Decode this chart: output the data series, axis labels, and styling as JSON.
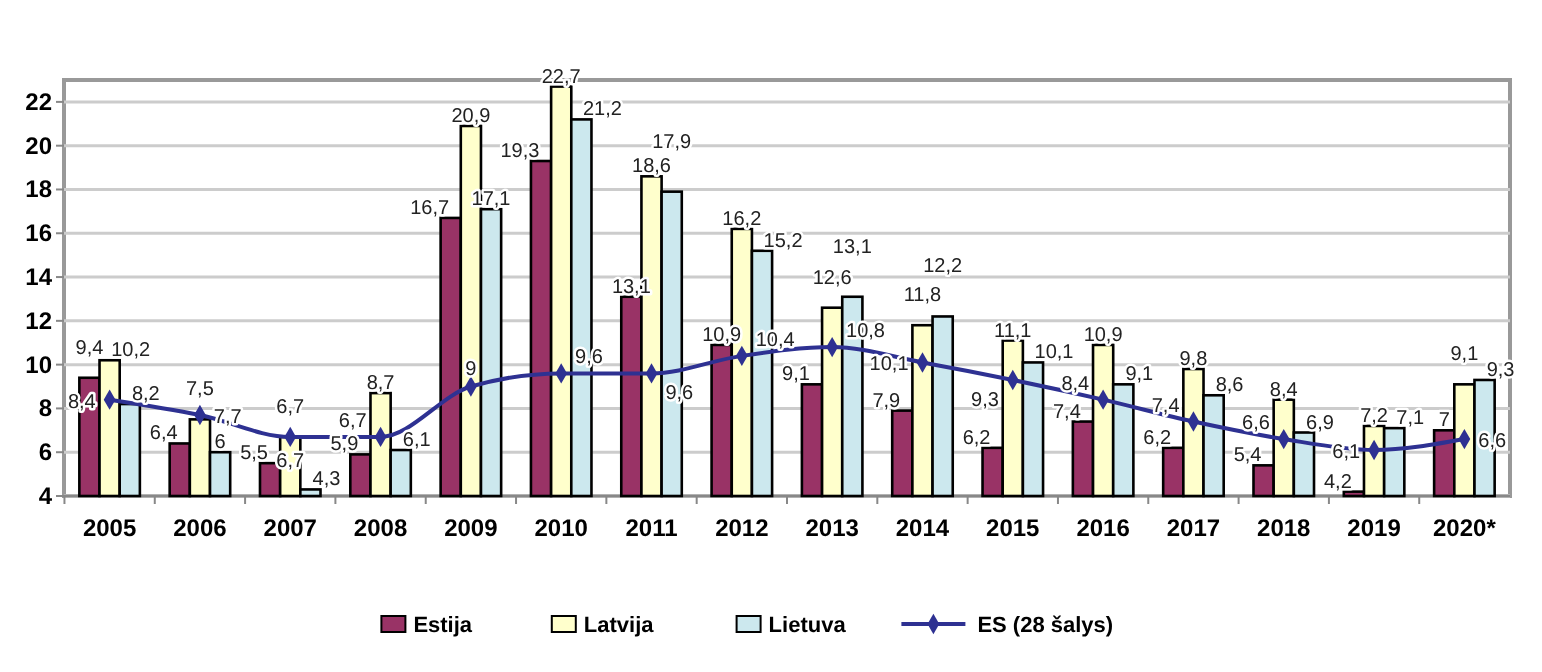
{
  "chart_data": {
    "type": "bar",
    "categories": [
      "2005",
      "2006",
      "2007",
      "2008",
      "2009",
      "2010",
      "2011",
      "2012",
      "2013",
      "2014",
      "2015",
      "2016",
      "2017",
      "2018",
      "2019",
      "2020*"
    ],
    "series": [
      {
        "name": "Estija",
        "color": "#993366",
        "values": [
          9.4,
          6.4,
          5.5,
          5.9,
          16.7,
          19.3,
          13.1,
          10.9,
          9.1,
          7.9,
          6.2,
          7.4,
          6.2,
          5.4,
          4.2,
          7
        ],
        "value_labels": [
          "9,4",
          "6,4",
          "5,5",
          "5,9",
          "16,7",
          "19,3",
          "13,1",
          "10,9",
          "9,1",
          "7,9",
          "6,2",
          "7,4",
          "6,2",
          "5,4",
          "4,2",
          "7"
        ]
      },
      {
        "name": "Latvija",
        "color": "#ffffcc",
        "values": [
          10.2,
          7.5,
          6.7,
          8.7,
          20.9,
          22.7,
          18.6,
          16.2,
          12.6,
          11.8,
          11.1,
          10.9,
          9.8,
          8.4,
          7.2,
          9.1
        ],
        "value_labels": [
          "10,2",
          "7,5",
          "6,7",
          "8,7",
          "20,9",
          "22,7",
          "18,6",
          "16,2",
          "12,6",
          "11,8",
          "11,1",
          "10,9",
          "9,8",
          "8,4",
          "7,2",
          "9,1"
        ]
      },
      {
        "name": "Lietuva",
        "color": "#cce8ee",
        "values": [
          8.2,
          6,
          4.3,
          6.1,
          17.1,
          21.2,
          17.9,
          15.2,
          13.1,
          12.2,
          10.1,
          9.1,
          8.6,
          6.9,
          7.1,
          9.3
        ],
        "value_labels": [
          "8,2",
          "6",
          "4,3",
          "6,1",
          "17,1",
          "21,2",
          "17,9",
          "15,2",
          "13,1",
          "12,2",
          "10,1",
          "9,1",
          "8,6",
          "6,9",
          "7,1",
          "9,3"
        ]
      },
      {
        "name": "ES (28 šalys)",
        "type": "line",
        "color": "#2e3192",
        "marker": "diamond",
        "values": [
          8.4,
          7.7,
          6.7,
          6.7,
          9,
          9.6,
          9.6,
          10.4,
          10.8,
          10.1,
          9.3,
          8.4,
          7.4,
          6.6,
          6.1,
          6.6
        ],
        "value_labels": [
          "8,4",
          "7,7",
          "6,7",
          "6,7",
          "9",
          "9,6",
          "9,6",
          "10,4",
          "10,8",
          "10,1",
          "9,3",
          "8,4",
          "7,4",
          "6,6",
          "6,1",
          "6,6"
        ]
      }
    ],
    "ylim": [
      4,
      23
    ],
    "yticks": [
      4,
      6,
      8,
      10,
      12,
      14,
      16,
      18,
      20,
      22
    ],
    "grid": "y",
    "legend": "bottom"
  }
}
